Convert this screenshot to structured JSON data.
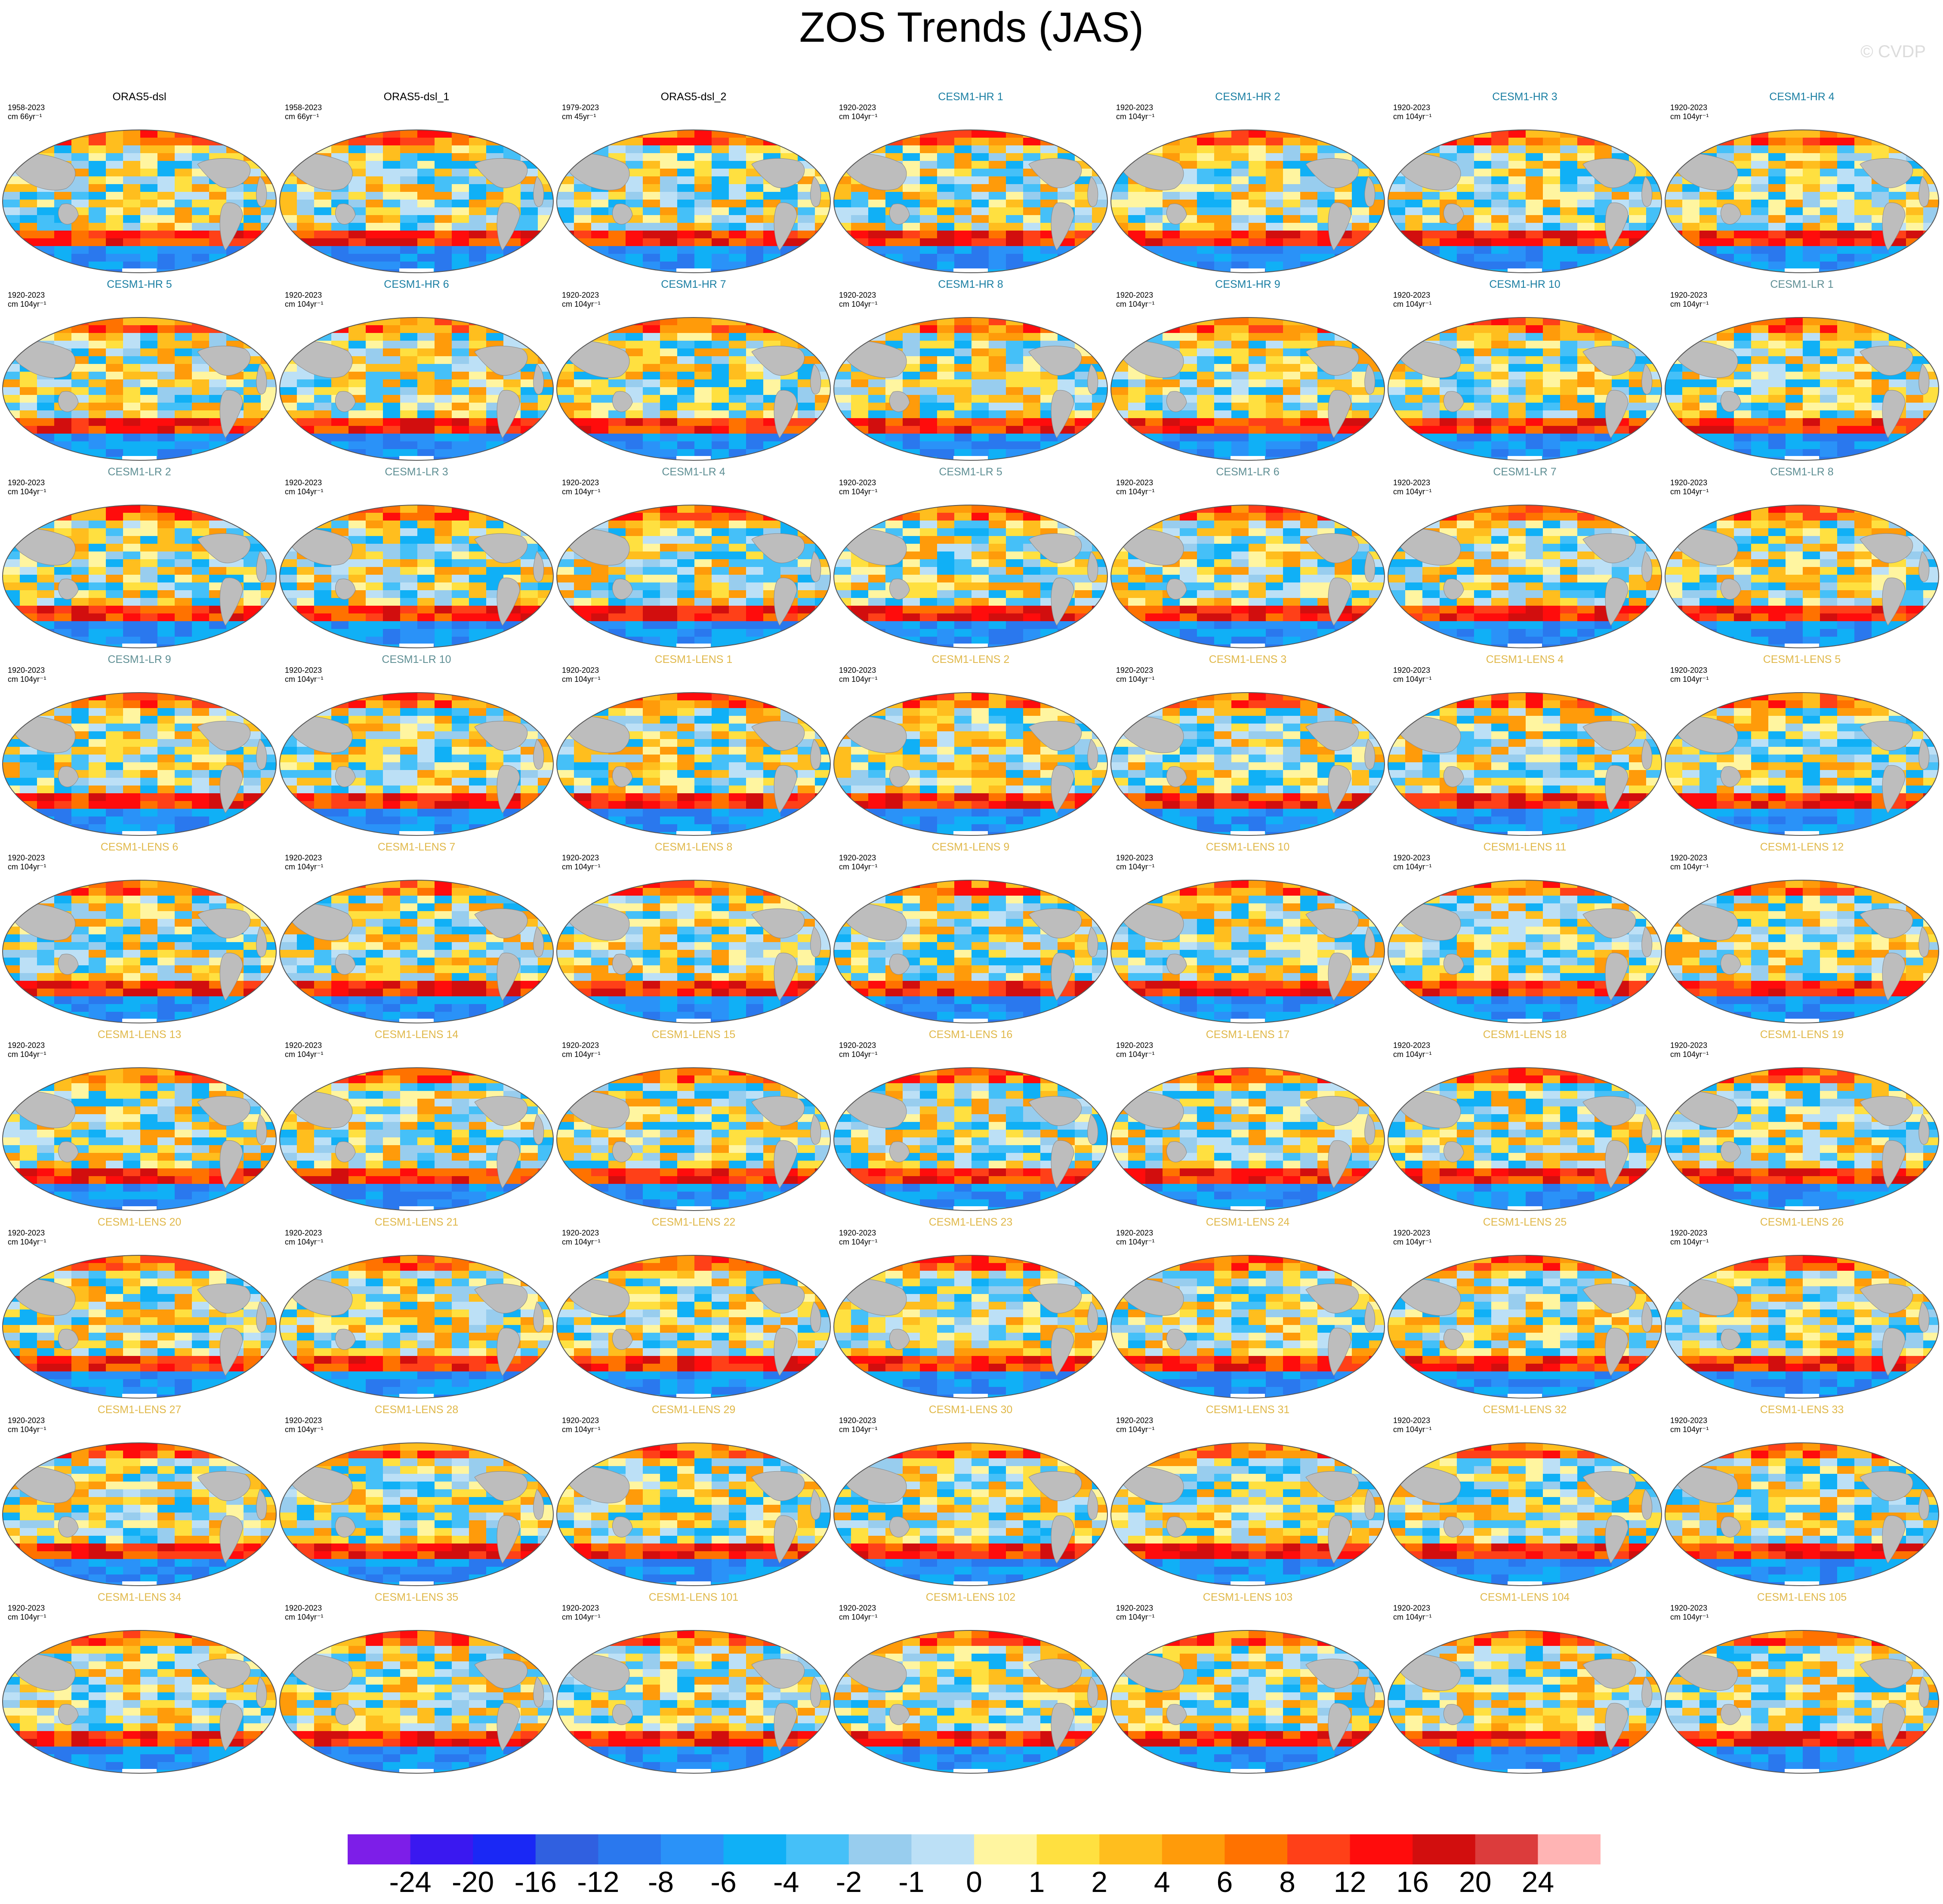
{
  "title": "ZOS Trends (JAS)",
  "copyright": "© CVDP",
  "colors": {
    "ORAS5": "#000000",
    "CESM1-HR": "#1b7fa3",
    "CESM1-LR": "#5f8f94",
    "CESM1-LENS": "#e0b84a",
    "land": "#bdbdbd",
    "outline": "#555555"
  },
  "panels": [
    {
      "title": "ORAS5-dsl",
      "years": "1958-2023",
      "units": "cm 66yr⁻¹",
      "group": "ORAS5"
    },
    {
      "title": "ORAS5-dsl_1",
      "years": "1958-2023",
      "units": "cm 66yr⁻¹",
      "group": "ORAS5"
    },
    {
      "title": "ORAS5-dsl_2",
      "years": "1979-2023",
      "units": "cm 45yr⁻¹",
      "group": "ORAS5"
    },
    {
      "title": "CESM1-HR 1",
      "years": "1920-2023",
      "units": "cm 104yr⁻¹",
      "group": "CESM1-HR"
    },
    {
      "title": "CESM1-HR 2",
      "years": "1920-2023",
      "units": "cm 104yr⁻¹",
      "group": "CESM1-HR"
    },
    {
      "title": "CESM1-HR 3",
      "years": "1920-2023",
      "units": "cm 104yr⁻¹",
      "group": "CESM1-HR"
    },
    {
      "title": "CESM1-HR 4",
      "years": "1920-2023",
      "units": "cm 104yr⁻¹",
      "group": "CESM1-HR"
    },
    {
      "title": "CESM1-HR 5",
      "years": "1920-2023",
      "units": "cm 104yr⁻¹",
      "group": "CESM1-HR"
    },
    {
      "title": "CESM1-HR 6",
      "years": "1920-2023",
      "units": "cm 104yr⁻¹",
      "group": "CESM1-HR"
    },
    {
      "title": "CESM1-HR 7",
      "years": "1920-2023",
      "units": "cm 104yr⁻¹",
      "group": "CESM1-HR"
    },
    {
      "title": "CESM1-HR 8",
      "years": "1920-2023",
      "units": "cm 104yr⁻¹",
      "group": "CESM1-HR"
    },
    {
      "title": "CESM1-HR 9",
      "years": "1920-2023",
      "units": "cm 104yr⁻¹",
      "group": "CESM1-HR"
    },
    {
      "title": "CESM1-HR 10",
      "years": "1920-2023",
      "units": "cm 104yr⁻¹",
      "group": "CESM1-HR"
    },
    {
      "title": "CESM1-LR 1",
      "years": "1920-2023",
      "units": "cm 104yr⁻¹",
      "group": "CESM1-LR"
    },
    {
      "title": "CESM1-LR 2",
      "years": "1920-2023",
      "units": "cm 104yr⁻¹",
      "group": "CESM1-LR"
    },
    {
      "title": "CESM1-LR 3",
      "years": "1920-2023",
      "units": "cm 104yr⁻¹",
      "group": "CESM1-LR"
    },
    {
      "title": "CESM1-LR 4",
      "years": "1920-2023",
      "units": "cm 104yr⁻¹",
      "group": "CESM1-LR"
    },
    {
      "title": "CESM1-LR 5",
      "years": "1920-2023",
      "units": "cm 104yr⁻¹",
      "group": "CESM1-LR"
    },
    {
      "title": "CESM1-LR 6",
      "years": "1920-2023",
      "units": "cm 104yr⁻¹",
      "group": "CESM1-LR"
    },
    {
      "title": "CESM1-LR 7",
      "years": "1920-2023",
      "units": "cm 104yr⁻¹",
      "group": "CESM1-LR"
    },
    {
      "title": "CESM1-LR 8",
      "years": "1920-2023",
      "units": "cm 104yr⁻¹",
      "group": "CESM1-LR"
    },
    {
      "title": "CESM1-LR 9",
      "years": "1920-2023",
      "units": "cm 104yr⁻¹",
      "group": "CESM1-LR"
    },
    {
      "title": "CESM1-LR 10",
      "years": "1920-2023",
      "units": "cm 104yr⁻¹",
      "group": "CESM1-LR"
    },
    {
      "title": "CESM1-LENS 1",
      "years": "1920-2023",
      "units": "cm 104yr⁻¹",
      "group": "CESM1-LENS"
    },
    {
      "title": "CESM1-LENS 2",
      "years": "1920-2023",
      "units": "cm 104yr⁻¹",
      "group": "CESM1-LENS"
    },
    {
      "title": "CESM1-LENS 3",
      "years": "1920-2023",
      "units": "cm 104yr⁻¹",
      "group": "CESM1-LENS"
    },
    {
      "title": "CESM1-LENS 4",
      "years": "1920-2023",
      "units": "cm 104yr⁻¹",
      "group": "CESM1-LENS"
    },
    {
      "title": "CESM1-LENS 5",
      "years": "1920-2023",
      "units": "cm 104yr⁻¹",
      "group": "CESM1-LENS"
    },
    {
      "title": "CESM1-LENS 6",
      "years": "1920-2023",
      "units": "cm 104yr⁻¹",
      "group": "CESM1-LENS"
    },
    {
      "title": "CESM1-LENS 7",
      "years": "1920-2023",
      "units": "cm 104yr⁻¹",
      "group": "CESM1-LENS"
    },
    {
      "title": "CESM1-LENS 8",
      "years": "1920-2023",
      "units": "cm 104yr⁻¹",
      "group": "CESM1-LENS"
    },
    {
      "title": "CESM1-LENS 9",
      "years": "1920-2023",
      "units": "cm 104yr⁻¹",
      "group": "CESM1-LENS"
    },
    {
      "title": "CESM1-LENS 10",
      "years": "1920-2023",
      "units": "cm 104yr⁻¹",
      "group": "CESM1-LENS"
    },
    {
      "title": "CESM1-LENS 11",
      "years": "1920-2023",
      "units": "cm 104yr⁻¹",
      "group": "CESM1-LENS"
    },
    {
      "title": "CESM1-LENS 12",
      "years": "1920-2023",
      "units": "cm 104yr⁻¹",
      "group": "CESM1-LENS"
    },
    {
      "title": "CESM1-LENS 13",
      "years": "1920-2023",
      "units": "cm 104yr⁻¹",
      "group": "CESM1-LENS"
    },
    {
      "title": "CESM1-LENS 14",
      "years": "1920-2023",
      "units": "cm 104yr⁻¹",
      "group": "CESM1-LENS"
    },
    {
      "title": "CESM1-LENS 15",
      "years": "1920-2023",
      "units": "cm 104yr⁻¹",
      "group": "CESM1-LENS"
    },
    {
      "title": "CESM1-LENS 16",
      "years": "1920-2023",
      "units": "cm 104yr⁻¹",
      "group": "CESM1-LENS"
    },
    {
      "title": "CESM1-LENS 17",
      "years": "1920-2023",
      "units": "cm 104yr⁻¹",
      "group": "CESM1-LENS"
    },
    {
      "title": "CESM1-LENS 18",
      "years": "1920-2023",
      "units": "cm 104yr⁻¹",
      "group": "CESM1-LENS"
    },
    {
      "title": "CESM1-LENS 19",
      "years": "1920-2023",
      "units": "cm 104yr⁻¹",
      "group": "CESM1-LENS"
    },
    {
      "title": "CESM1-LENS 20",
      "years": "1920-2023",
      "units": "cm 104yr⁻¹",
      "group": "CESM1-LENS"
    },
    {
      "title": "CESM1-LENS 21",
      "years": "1920-2023",
      "units": "cm 104yr⁻¹",
      "group": "CESM1-LENS"
    },
    {
      "title": "CESM1-LENS 22",
      "years": "1920-2023",
      "units": "cm 104yr⁻¹",
      "group": "CESM1-LENS"
    },
    {
      "title": "CESM1-LENS 23",
      "years": "1920-2023",
      "units": "cm 104yr⁻¹",
      "group": "CESM1-LENS"
    },
    {
      "title": "CESM1-LENS 24",
      "years": "1920-2023",
      "units": "cm 104yr⁻¹",
      "group": "CESM1-LENS"
    },
    {
      "title": "CESM1-LENS 25",
      "years": "1920-2023",
      "units": "cm 104yr⁻¹",
      "group": "CESM1-LENS"
    },
    {
      "title": "CESM1-LENS 26",
      "years": "1920-2023",
      "units": "cm 104yr⁻¹",
      "group": "CESM1-LENS"
    },
    {
      "title": "CESM1-LENS 27",
      "years": "1920-2023",
      "units": "cm 104yr⁻¹",
      "group": "CESM1-LENS"
    },
    {
      "title": "CESM1-LENS 28",
      "years": "1920-2023",
      "units": "cm 104yr⁻¹",
      "group": "CESM1-LENS"
    },
    {
      "title": "CESM1-LENS 29",
      "years": "1920-2023",
      "units": "cm 104yr⁻¹",
      "group": "CESM1-LENS"
    },
    {
      "title": "CESM1-LENS 30",
      "years": "1920-2023",
      "units": "cm 104yr⁻¹",
      "group": "CESM1-LENS"
    },
    {
      "title": "CESM1-LENS 31",
      "years": "1920-2023",
      "units": "cm 104yr⁻¹",
      "group": "CESM1-LENS"
    },
    {
      "title": "CESM1-LENS 32",
      "years": "1920-2023",
      "units": "cm 104yr⁻¹",
      "group": "CESM1-LENS"
    },
    {
      "title": "CESM1-LENS 33",
      "years": "1920-2023",
      "units": "cm 104yr⁻¹",
      "group": "CESM1-LENS"
    },
    {
      "title": "CESM1-LENS 34",
      "years": "1920-2023",
      "units": "cm 104yr⁻¹",
      "group": "CESM1-LENS"
    },
    {
      "title": "CESM1-LENS 35",
      "years": "1920-2023",
      "units": "cm 104yr⁻¹",
      "group": "CESM1-LENS"
    },
    {
      "title": "CESM1-LENS 101",
      "years": "1920-2023",
      "units": "cm 104yr⁻¹",
      "group": "CESM1-LENS"
    },
    {
      "title": "CESM1-LENS 102",
      "years": "1920-2023",
      "units": "cm 104yr⁻¹",
      "group": "CESM1-LENS"
    },
    {
      "title": "CESM1-LENS 103",
      "years": "1920-2023",
      "units": "cm 104yr⁻¹",
      "group": "CESM1-LENS"
    },
    {
      "title": "CESM1-LENS 104",
      "years": "1920-2023",
      "units": "cm 104yr⁻¹",
      "group": "CESM1-LENS"
    },
    {
      "title": "CESM1-LENS 105",
      "years": "1920-2023",
      "units": "cm 104yr⁻¹",
      "group": "CESM1-LENS"
    }
  ],
  "colorbar": {
    "colors": [
      "#7d1ee8",
      "#3a18f0",
      "#1a28f5",
      "#3060e0",
      "#2a78ee",
      "#2a92f8",
      "#10b0f6",
      "#45c0f8",
      "#98cdee",
      "#bce0f6",
      "#fff5a0",
      "#ffe040",
      "#ffbe1e",
      "#ff9b0a",
      "#ff7200",
      "#ff4018",
      "#ff0c0c",
      "#d20e0e",
      "#dc3c3c",
      "#ffb4b4"
    ],
    "labels": [
      "-24",
      "-20",
      "-16",
      "-12",
      "-8",
      "-6",
      "-4",
      "-2",
      "-1",
      "0",
      "1",
      "2",
      "4",
      "6",
      "8",
      "12",
      "16",
      "20",
      "24"
    ]
  }
}
